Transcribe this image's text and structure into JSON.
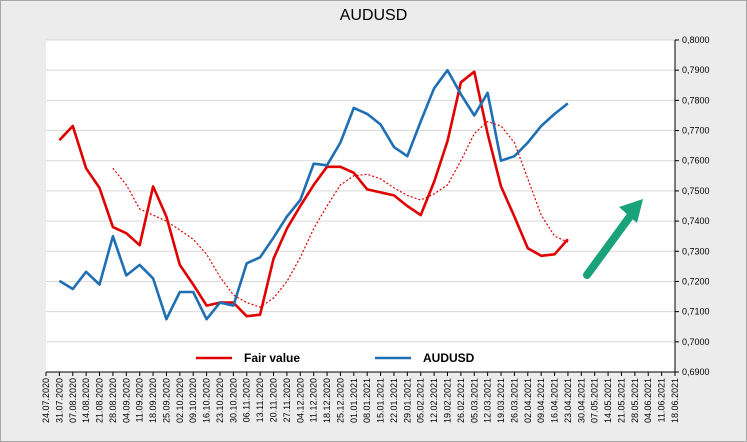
{
  "chart_data": {
    "type": "line",
    "title": "AUDUSD",
    "xlabel": "",
    "ylabel": "",
    "ylim": [
      0.69,
      0.8
    ],
    "y_axis_side": "right",
    "y_ticks": [
      "0,6900",
      "0,7000",
      "0,7100",
      "0,7200",
      "0,7300",
      "0,7400",
      "0,7500",
      "0,7600",
      "0,7700",
      "0,7800",
      "0,7900",
      "0,8000"
    ],
    "grid": "horizontal",
    "legend_position": "bottom",
    "categories": [
      "24.07.2020",
      "31.07.2020",
      "07.08.2020",
      "14.08.2020",
      "21.08.2020",
      "28.08.2020",
      "04.09.2020",
      "11.09.2020",
      "18.09.2020",
      "25.09.2020",
      "02.10.2020",
      "09.10.2020",
      "16.10.2020",
      "23.10.2020",
      "30.10.2020",
      "06.11.2020",
      "13.11.2020",
      "20.11.2020",
      "27.11.2020",
      "04.12.2020",
      "11.12.2020",
      "18.12.2020",
      "25.12.2020",
      "01.01.2021",
      "08.01.2021",
      "15.01.2021",
      "22.01.2021",
      "29.01.2021",
      "05.02.2021",
      "12.02.2021",
      "19.02.2021",
      "26.02.2021",
      "05.03.2021",
      "12.03.2021",
      "19.03.2021",
      "26.03.2021",
      "02.04.2021",
      "09.04.2021",
      "16.04.2021",
      "23.04.2021",
      "30.04.2021",
      "07.05.2021",
      "14.05.2021",
      "21.05.2021",
      "28.05.2021",
      "04.06.2021",
      "11.06.2021",
      "18.06.2021"
    ],
    "series": [
      {
        "name": "Fair value",
        "color": "#e00000",
        "style": "solid",
        "values": [
          null,
          0.7668,
          0.7715,
          0.7575,
          0.751,
          0.738,
          0.736,
          0.732,
          0.7515,
          0.7415,
          0.7255,
          0.719,
          0.712,
          0.713,
          0.713,
          0.7085,
          0.709,
          0.7275,
          0.7375,
          0.745,
          0.752,
          0.758,
          0.758,
          0.756,
          0.7505,
          0.7495,
          0.7485,
          0.745,
          0.742,
          0.753,
          0.7665,
          0.786,
          0.7895,
          0.769,
          0.7515,
          0.7415,
          0.731,
          0.7285,
          0.729,
          0.734,
          null,
          null,
          null,
          null,
          null,
          null,
          null,
          null
        ]
      },
      {
        "name": "AUDUSD",
        "color": "#1f6fb5",
        "style": "solid",
        "values": [
          null,
          0.7202,
          0.7175,
          0.7232,
          0.719,
          0.735,
          0.722,
          0.7255,
          0.721,
          0.7075,
          0.7165,
          0.7165,
          0.7075,
          0.713,
          0.712,
          0.726,
          0.728,
          0.7345,
          0.7415,
          0.747,
          0.759,
          0.7585,
          0.766,
          0.7775,
          0.7755,
          0.772,
          0.7645,
          0.7615,
          0.773,
          0.784,
          0.79,
          0.782,
          0.775,
          0.7825,
          0.76,
          0.7615,
          0.766,
          0.7715,
          0.7755,
          0.779,
          null,
          null,
          null,
          null,
          null,
          null,
          null,
          null
        ]
      },
      {
        "values": [
          null,
          null,
          null,
          null,
          null,
          0.7575,
          0.752,
          0.744,
          0.742,
          0.74,
          0.737,
          0.734,
          0.729,
          0.7215,
          0.7155,
          0.713,
          0.7115,
          0.7145,
          0.72,
          0.728,
          0.7375,
          0.745,
          0.752,
          0.755,
          0.7555,
          0.754,
          0.751,
          0.7485,
          0.747,
          0.749,
          0.752,
          0.76,
          0.769,
          0.773,
          0.7715,
          0.766,
          0.754,
          0.742,
          0.735,
          0.733,
          null,
          null,
          null,
          null,
          null,
          null,
          null,
          null
        ],
        "color": "#e00000",
        "style": "dotted"
      }
    ],
    "annotation": {
      "type": "arrow",
      "color": "#1aa37a",
      "direction": "up-right"
    }
  }
}
